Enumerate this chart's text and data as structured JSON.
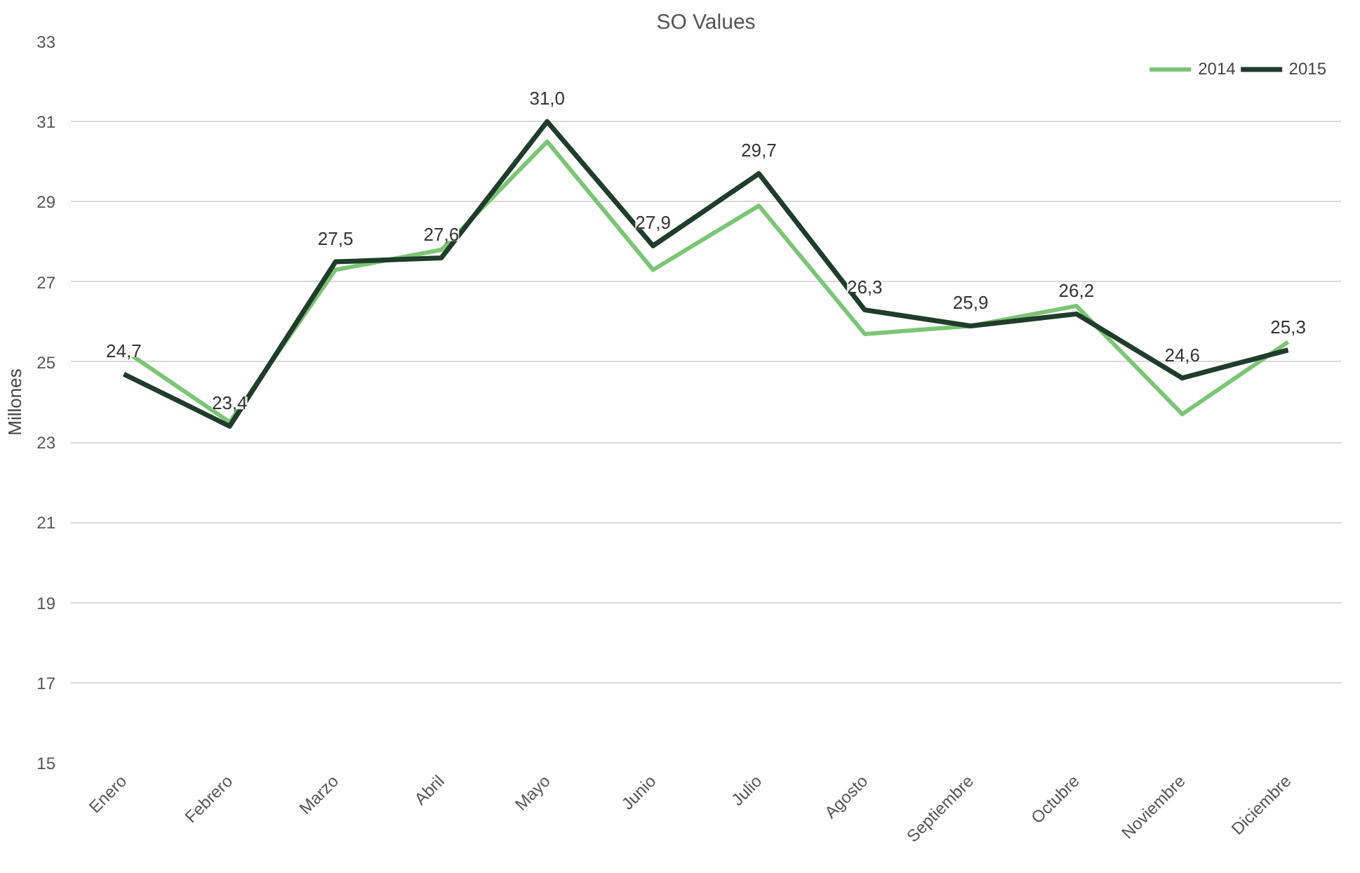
{
  "chart_data": {
    "type": "line",
    "title": "SO Values",
    "ylabel": "Millones",
    "categories": [
      "Enero",
      "Febrero",
      "Marzo",
      "Abril",
      "Mayo",
      "Junio",
      "Julio",
      "Agosto",
      "Septiembre",
      "Octubre",
      "Noviembre",
      "Diciembre"
    ],
    "series": [
      {
        "name": "2014",
        "color": "#7cc576",
        "values": [
          25.3,
          23.5,
          27.3,
          27.8,
          30.5,
          27.3,
          28.9,
          25.7,
          25.9,
          26.4,
          23.7,
          25.5
        ]
      },
      {
        "name": "2015",
        "color": "#1f3d2a",
        "values": [
          24.7,
          23.4,
          27.5,
          27.6,
          31.0,
          27.9,
          29.7,
          26.3,
          25.9,
          26.2,
          24.6,
          25.3
        ],
        "value_labels": [
          "24,7",
          "23,4",
          "27,5",
          "27,6",
          "31,0",
          "27,9",
          "29,7",
          "26,3",
          "25,9",
          "26,2",
          "24,6",
          "25,3"
        ]
      }
    ],
    "ylim": [
      15,
      33
    ],
    "yticks": [
      15,
      17,
      19,
      21,
      23,
      25,
      27,
      29,
      31,
      33
    ],
    "grid": "y",
    "legend": "top right",
    "marker": "none",
    "line_style": "solid"
  }
}
